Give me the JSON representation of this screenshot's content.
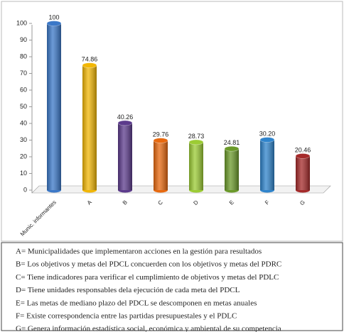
{
  "chart_data": {
    "type": "bar",
    "categories": [
      "Munic. informantes",
      "A",
      "B",
      "C",
      "D",
      "E",
      "F",
      "G"
    ],
    "values": [
      100,
      74.86,
      40.26,
      29.76,
      28.73,
      24.81,
      30.2,
      20.46
    ],
    "value_labels": [
      "100",
      "74.86",
      "40.26",
      "29.76",
      "28.73",
      "24.81",
      "30.20",
      "20.46"
    ],
    "colors": [
      "#3b78c8",
      "#f2b705",
      "#5c3b8c",
      "#e8690f",
      "#9ccc34",
      "#6b9a2a",
      "#2f84cc",
      "#a52a2a"
    ],
    "ylim": [
      0,
      100
    ],
    "yticks": [
      0,
      10,
      20,
      30,
      40,
      50,
      60,
      70,
      80,
      90,
      100
    ],
    "grid": false
  },
  "notes": [
    "A=  Municipalidades que implementaron acciones en la gestión para resultados",
    "B=  Los objetivos  y metas del PDCL concuerden con los objetivos y metas del PDRC",
    "C=  Tiene indicadores para verificar el cumplimiento de objetivos  y metas del PDLC",
    "D=  Tiene unidades responsables dela ejecución de cada meta del PDCL",
    "E=   Las metas de mediano plazo del PDCL se descomponen en metas anuales",
    "F=   Existe  correspondencia entre las partidas presupuestales y el PDLC",
    "G=  Genera información estadística social, económica y ambiental de su competencia"
  ]
}
